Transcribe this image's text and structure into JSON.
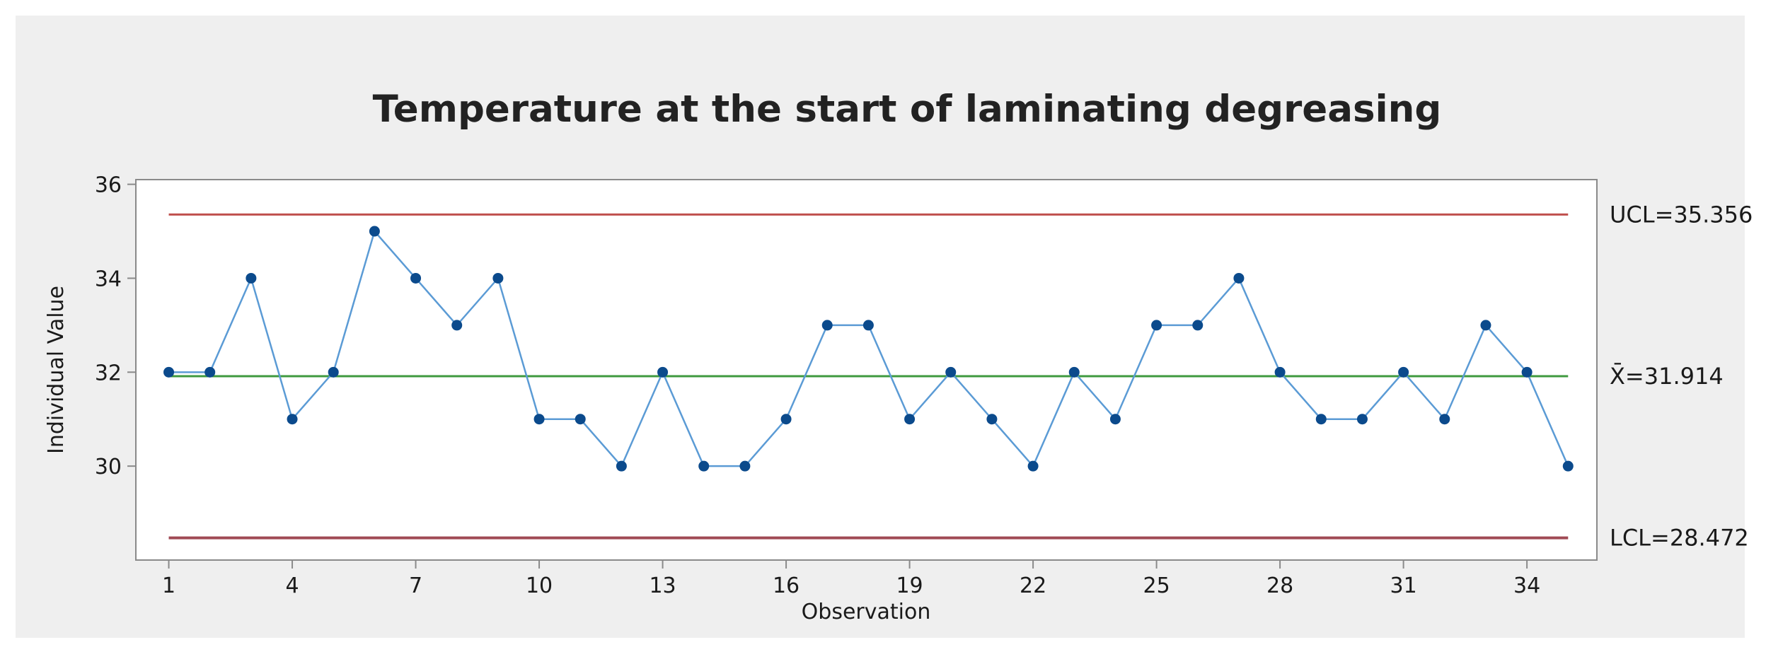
{
  "chart_data": {
    "type": "line",
    "title": "Temperature at the start of laminating degreasing",
    "xlabel": "Observation",
    "ylabel": "Individual Value",
    "x": [
      1,
      2,
      3,
      4,
      5,
      6,
      7,
      8,
      9,
      10,
      11,
      12,
      13,
      14,
      15,
      16,
      17,
      18,
      19,
      20,
      21,
      22,
      23,
      24,
      25,
      26,
      27,
      28,
      29,
      30,
      31,
      32,
      33,
      34,
      35
    ],
    "series": [
      {
        "values": [
          32,
          32,
          34,
          31,
          32,
          35,
          34,
          33,
          34,
          31,
          31,
          30,
          32,
          30,
          30,
          31,
          33,
          33,
          31,
          32,
          31,
          30,
          32,
          31,
          33,
          33,
          34,
          32,
          31,
          31,
          32,
          31,
          33,
          32,
          30
        ]
      }
    ],
    "x_ticks": [
      1,
      4,
      7,
      10,
      13,
      16,
      19,
      22,
      25,
      28,
      31,
      34
    ],
    "y_ticks": [
      30,
      32,
      34,
      36
    ],
    "xlim": [
      0.2,
      35.7
    ],
    "ylim": [
      28,
      36.1
    ],
    "limits": {
      "ucl": {
        "value": 35.356,
        "label": "UCL=35.356",
        "color": "#c0504d"
      },
      "center": {
        "value": 31.914,
        "label": "X̄=31.914",
        "color": "#3f9a3f"
      },
      "lcl": {
        "value": 28.472,
        "label": "LCL=28.472",
        "color": "#a04a55"
      }
    },
    "grid": false,
    "line_color": "#5b9bd5",
    "marker_color": "#0b4a8c"
  }
}
